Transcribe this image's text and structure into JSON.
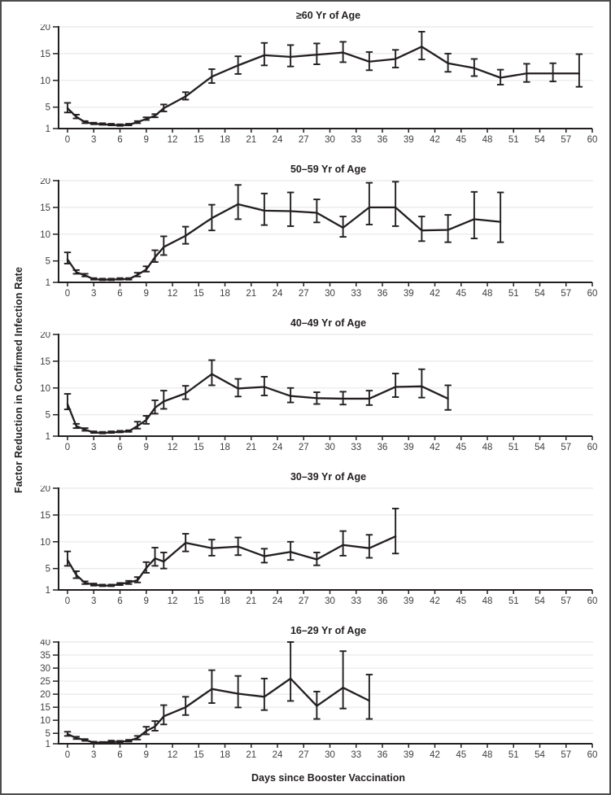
{
  "figure": {
    "y_axis_label": "Factor Reduction in Confirmed Infection Rate",
    "x_axis_label": "Days since Booster Vaccination",
    "colors": {
      "line": "#231f20",
      "grid": "#e8e8e8",
      "tick_text": "#404040",
      "axis": "#231f20"
    }
  },
  "chart_data": [
    {
      "type": "line",
      "title": "≥60 Yr of Age",
      "x": [
        0,
        1,
        2,
        3,
        4,
        5,
        6,
        7,
        8,
        9,
        10,
        11,
        13.5,
        16.5,
        19.5,
        22.5,
        25.5,
        28.5,
        31.5,
        34.5,
        37.5,
        40.5,
        43.5,
        46.5,
        49.5,
        52.5,
        55.5,
        58.5
      ],
      "y": [
        4.8,
        3.2,
        2.2,
        1.9,
        1.8,
        1.7,
        1.6,
        1.7,
        2.2,
        2.8,
        3.4,
        4.8,
        7.0,
        10.7,
        12.8,
        14.7,
        14.4,
        14.8,
        15.2,
        13.5,
        14.0,
        16.3,
        13.2,
        12.3,
        10.5,
        11.3,
        11.3,
        11.3
      ],
      "err_lo": [
        4.0,
        2.9,
        2.0,
        1.8,
        1.7,
        1.6,
        1.5,
        1.6,
        2.0,
        2.6,
        3.1,
        4.2,
        6.4,
        9.5,
        11.2,
        12.8,
        12.6,
        13.0,
        13.4,
        11.9,
        12.4,
        13.9,
        11.6,
        10.8,
        9.2,
        9.7,
        9.8,
        8.8
      ],
      "err_hi": [
        5.8,
        3.6,
        2.4,
        2.1,
        2.0,
        1.9,
        1.8,
        1.9,
        2.4,
        3.1,
        3.7,
        5.5,
        7.8,
        12.1,
        14.5,
        17.0,
        16.6,
        16.9,
        17.2,
        15.3,
        15.7,
        19.1,
        15.0,
        14.0,
        12.0,
        13.1,
        13.2,
        14.9
      ],
      "ylim": [
        1,
        20
      ],
      "yticks": [
        1,
        5,
        10,
        15,
        20
      ],
      "xlim": [
        0,
        60
      ],
      "xticks": [
        0,
        3,
        6,
        9,
        12,
        15,
        18,
        21,
        24,
        27,
        30,
        33,
        36,
        39,
        42,
        45,
        48,
        51,
        54,
        57,
        60
      ],
      "grid": true,
      "error_bars": true
    },
    {
      "type": "line",
      "title": "50–59 Yr of Age",
      "x": [
        0,
        1,
        2,
        3,
        4,
        5,
        6,
        7,
        8,
        9,
        10,
        11,
        13.5,
        16.5,
        19.5,
        22.5,
        25.5,
        28.5,
        31.5,
        34.5,
        37.5,
        40.5,
        43.5,
        46.5,
        49.5
      ],
      "y": [
        5.3,
        2.9,
        2.3,
        1.6,
        1.5,
        1.5,
        1.6,
        1.6,
        2.4,
        3.4,
        5.7,
        7.6,
        9.7,
        13.0,
        15.6,
        14.4,
        14.3,
        14.0,
        11.2,
        15.0,
        15.0,
        10.7,
        10.8,
        12.8,
        12.3
      ],
      "err_lo": [
        4.5,
        2.6,
        2.1,
        1.5,
        1.4,
        1.4,
        1.5,
        1.5,
        2.1,
        3.0,
        4.8,
        6.1,
        8.2,
        10.7,
        12.8,
        11.7,
        11.5,
        12.2,
        9.5,
        11.8,
        11.5,
        8.7,
        8.5,
        9.2,
        8.5
      ],
      "err_hi": [
        6.6,
        3.3,
        2.6,
        1.8,
        1.7,
        1.7,
        1.8,
        1.8,
        2.8,
        4.0,
        7.0,
        9.6,
        11.4,
        15.5,
        19.2,
        17.6,
        17.8,
        16.5,
        13.3,
        19.6,
        19.8,
        13.3,
        13.6,
        17.9,
        17.8
      ],
      "ylim": [
        1,
        20
      ],
      "yticks": [
        1,
        5,
        10,
        15,
        20
      ],
      "xlim": [
        0,
        60
      ],
      "xticks": [
        0,
        3,
        6,
        9,
        12,
        15,
        18,
        21,
        24,
        27,
        30,
        33,
        36,
        39,
        42,
        45,
        48,
        51,
        54,
        57,
        60
      ],
      "grid": true,
      "error_bars": true
    },
    {
      "type": "line",
      "title": "40–49 Yr of Age",
      "x": [
        0,
        1,
        2,
        3,
        4,
        5,
        6,
        7,
        8,
        9,
        10,
        11,
        13.5,
        16.5,
        19.5,
        22.5,
        25.5,
        28.5,
        31.5,
        34.5,
        37.5,
        40.5,
        43.5
      ],
      "y": [
        7.0,
        2.9,
        2.2,
        1.7,
        1.6,
        1.7,
        1.8,
        1.9,
        2.9,
        4.0,
        6.3,
        7.5,
        9.0,
        12.6,
        9.9,
        10.2,
        8.5,
        8.1,
        8.0,
        8.0,
        10.2,
        10.3,
        8.0
      ],
      "err_lo": [
        6.0,
        2.5,
        2.0,
        1.6,
        1.5,
        1.6,
        1.7,
        1.8,
        2.4,
        3.3,
        5.2,
        6.1,
        7.9,
        10.5,
        8.4,
        8.6,
        7.3,
        7.0,
        6.9,
        6.8,
        8.3,
        8.2,
        5.9
      ],
      "err_hi": [
        8.9,
        3.3,
        2.5,
        1.9,
        1.8,
        1.9,
        2.0,
        2.1,
        3.7,
        4.8,
        7.7,
        9.5,
        10.4,
        15.2,
        11.7,
        12.1,
        10.0,
        9.2,
        9.3,
        9.5,
        12.7,
        13.5,
        10.5
      ],
      "ylim": [
        1,
        20
      ],
      "yticks": [
        1,
        5,
        10,
        15,
        20
      ],
      "xlim": [
        0,
        60
      ],
      "xticks": [
        0,
        3,
        6,
        9,
        12,
        15,
        18,
        21,
        24,
        27,
        30,
        33,
        36,
        39,
        42,
        45,
        48,
        51,
        54,
        57,
        60
      ],
      "grid": true,
      "error_bars": true
    },
    {
      "type": "line",
      "title": "30–39 Yr of Age",
      "x": [
        0,
        1,
        2,
        3,
        4,
        5,
        6,
        7,
        8,
        9,
        10,
        11,
        13.5,
        16.5,
        19.5,
        22.5,
        25.5,
        28.5,
        31.5,
        34.5,
        37.5
      ],
      "y": [
        6.6,
        3.8,
        2.3,
        2.0,
        1.8,
        1.8,
        2.1,
        2.4,
        2.8,
        5.1,
        6.9,
        6.3,
        9.8,
        8.8,
        9.1,
        7.3,
        8.1,
        6.7,
        9.4,
        8.8,
        11.0
      ],
      "err_lo": [
        5.5,
        3.2,
        2.1,
        1.8,
        1.7,
        1.7,
        1.9,
        2.1,
        2.4,
        4.2,
        5.5,
        5.0,
        8.2,
        7.4,
        7.5,
        6.1,
        6.6,
        5.6,
        7.4,
        7.0,
        7.8
      ],
      "err_hi": [
        8.2,
        4.5,
        2.6,
        2.2,
        2.0,
        2.0,
        2.3,
        2.7,
        3.4,
        6.2,
        8.9,
        8.0,
        11.5,
        10.4,
        10.8,
        8.7,
        10.0,
        8.0,
        12.0,
        11.3,
        16.2
      ],
      "ylim": [
        1,
        20
      ],
      "yticks": [
        1,
        5,
        10,
        15,
        20
      ],
      "xlim": [
        0,
        60
      ],
      "xticks": [
        0,
        3,
        6,
        9,
        12,
        15,
        18,
        21,
        24,
        27,
        30,
        33,
        36,
        39,
        42,
        45,
        48,
        51,
        54,
        57,
        60
      ],
      "grid": true,
      "error_bars": true
    },
    {
      "type": "line",
      "title": "16–29 Yr of Age",
      "x": [
        0,
        1,
        2,
        3,
        4,
        5,
        6,
        7,
        8,
        9,
        10,
        11,
        13.5,
        16.5,
        19.5,
        22.5,
        25.5,
        28.5,
        31.5,
        34.5
      ],
      "y": [
        4.7,
        3.2,
        2.4,
        1.5,
        1.4,
        1.8,
        1.7,
        2.1,
        3.2,
        5.9,
        7.6,
        11.5,
        15.0,
        22.0,
        20.2,
        19.0,
        26.0,
        15.5,
        22.5,
        17.5
      ],
      "err_lo": [
        4.0,
        2.8,
        2.1,
        1.3,
        1.2,
        1.5,
        1.4,
        1.8,
        2.6,
        4.6,
        6.0,
        8.4,
        12.0,
        16.6,
        14.9,
        13.9,
        17.4,
        10.5,
        14.5,
        10.5
      ],
      "err_hi": [
        5.6,
        3.7,
        2.8,
        1.8,
        1.7,
        2.2,
        2.1,
        2.5,
        4.0,
        7.5,
        9.7,
        15.8,
        19.0,
        29.2,
        27.0,
        26.0,
        40.0,
        21.0,
        36.5,
        27.5
      ],
      "ylim": [
        1,
        40
      ],
      "yticks": [
        1,
        5,
        10,
        15,
        20,
        25,
        30,
        35,
        40
      ],
      "xlim": [
        0,
        60
      ],
      "xticks": [
        0,
        3,
        6,
        9,
        12,
        15,
        18,
        21,
        24,
        27,
        30,
        33,
        36,
        39,
        42,
        45,
        48,
        51,
        54,
        57,
        60
      ],
      "grid": true,
      "error_bars": true
    }
  ]
}
